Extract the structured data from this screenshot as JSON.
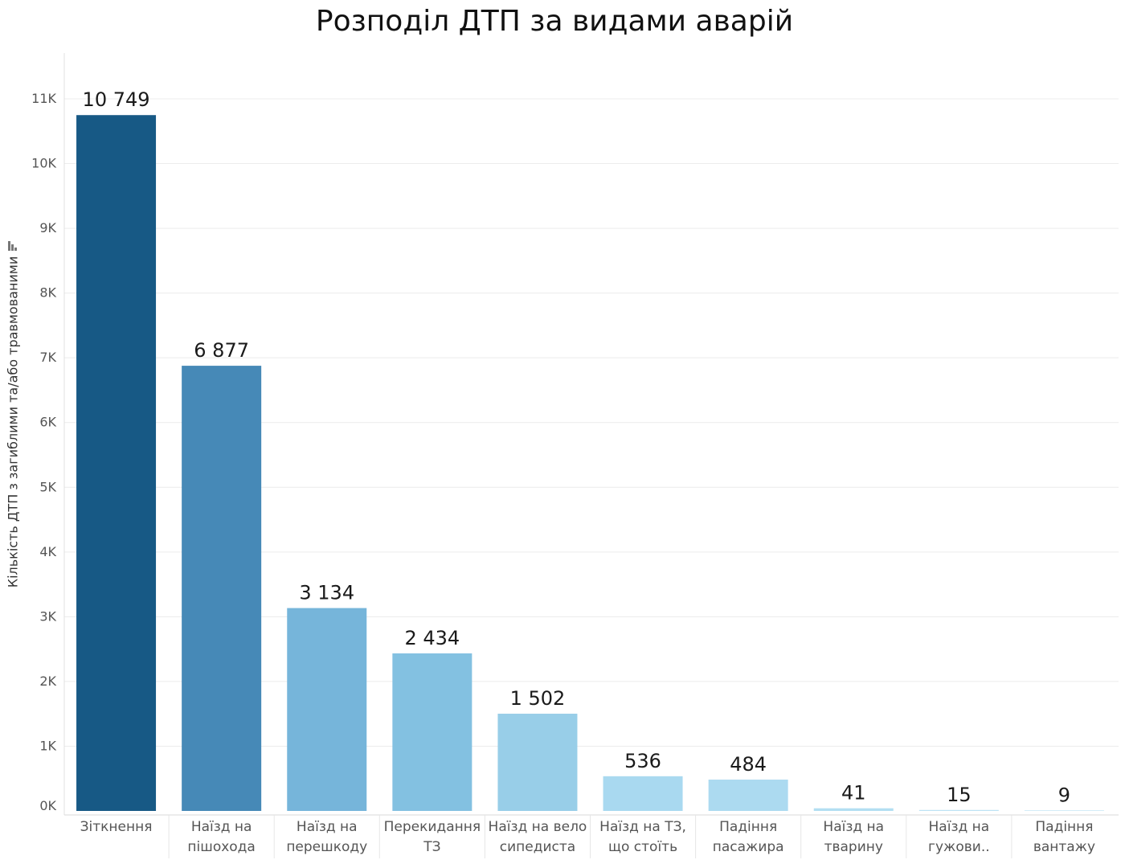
{
  "chart_data": {
    "type": "bar",
    "title": "Розподіл ДТП за видами аварій",
    "xlabel": "",
    "ylabel": "Кількість ДТП з загиблими та/або травмованими",
    "ylim": [
      0,
      11000
    ],
    "yticks": [
      0,
      1000,
      2000,
      3000,
      4000,
      5000,
      6000,
      7000,
      8000,
      9000,
      10000,
      11000
    ],
    "ytick_labels": [
      "0K",
      "1K",
      "2K",
      "3K",
      "4K",
      "5K",
      "6K",
      "7K",
      "8K",
      "9K",
      "10K",
      "11K"
    ],
    "grid": true,
    "categories": [
      [
        "Зіткнення"
      ],
      [
        "Наїзд на",
        "пішохода"
      ],
      [
        "Наїзд на",
        "перешкоду"
      ],
      [
        "Перекидання",
        "ТЗ"
      ],
      [
        "Наїзд на вело",
        "сипедиста"
      ],
      [
        "Наїзд на ТЗ,",
        "що стоїть"
      ],
      [
        "Падіння",
        "пасажира"
      ],
      [
        "Наїзд на",
        "тварину"
      ],
      [
        "Наїзд на",
        "гужови.."
      ],
      [
        "Падіння",
        "вантажу"
      ]
    ],
    "values": [
      10749,
      6877,
      3134,
      2434,
      1502,
      536,
      484,
      41,
      15,
      9
    ],
    "value_labels": [
      "10 749",
      "6 877",
      "3 134",
      "2 434",
      "1 502",
      "536",
      "484",
      "41",
      "15",
      "9"
    ],
    "colors": [
      "#175985",
      "#4689b7",
      "#76b5da",
      "#83c1e1",
      "#98cee8",
      "#a9d9f0",
      "#acdaf0",
      "#b3dff2",
      "#bde3f4",
      "#c4e6f5"
    ]
  },
  "icons": {
    "sort": "sort-descending-icon"
  }
}
